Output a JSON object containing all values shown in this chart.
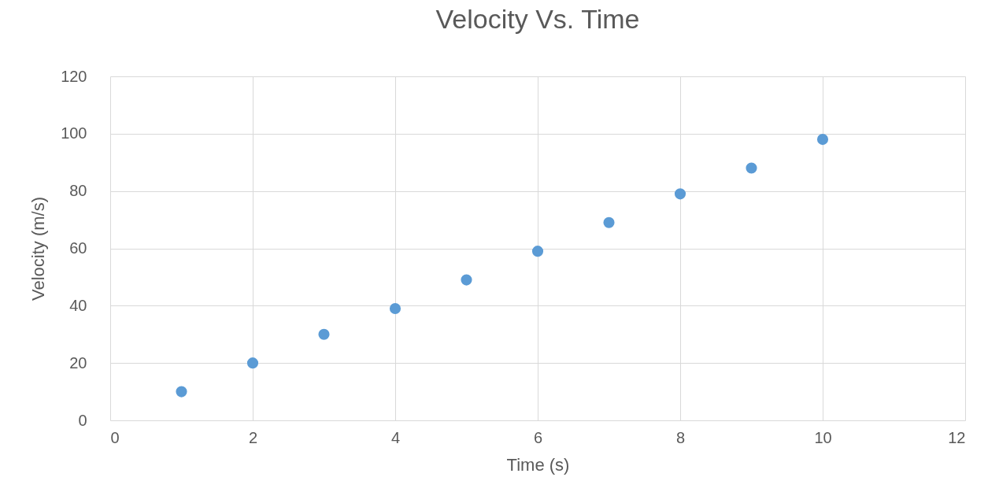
{
  "chart_data": {
    "type": "scatter",
    "title": "Velocity Vs. Time",
    "xlabel": "Time (s)",
    "ylabel": "Velocity (m/s)",
    "x": [
      1,
      2,
      3,
      4,
      5,
      6,
      7,
      8,
      9,
      10
    ],
    "series": [
      {
        "color": "#5b9bd5",
        "values": [
          10,
          20,
          30,
          39,
          49,
          59,
          69,
          79,
          88,
          98
        ]
      }
    ],
    "xlim": [
      0,
      12
    ],
    "xticks": [
      0,
      2,
      4,
      6,
      8,
      10,
      12
    ],
    "ylim": [
      0,
      120
    ],
    "yticks": [
      0,
      20,
      40,
      60,
      80,
      100,
      120
    ],
    "grid": true,
    "marker": "circle"
  }
}
